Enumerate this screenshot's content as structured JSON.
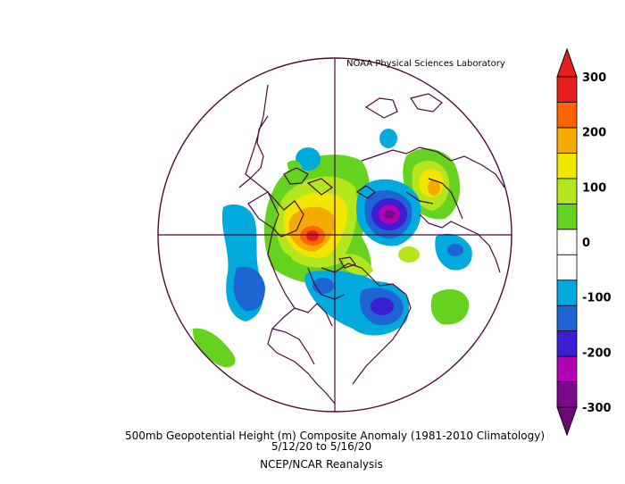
{
  "credit": "NOAA Physical Sciences Laboratory",
  "caption": {
    "line1": "500mb Geopotential Height (m) Composite Anomaly (1981-2010 Climatology)",
    "line2": "5/12/20  to 5/16/20",
    "line3": "NCEP/NCAR Reanalysis"
  },
  "colorbar": {
    "labels": [
      "300",
      "200",
      "100",
      "0",
      "-100",
      "-200",
      "-300"
    ],
    "colors": [
      "#7a0a8c",
      "#b400b4",
      "#3c1ed2",
      "#1e64d2",
      "#00aadc",
      "#ffffff",
      "#ffffff",
      "#64d21e",
      "#b4e61e",
      "#f0e600",
      "#f5aa00",
      "#ff6400",
      "#e61e1e"
    ],
    "top_arrow_color": "#e61e1e",
    "bottom_arrow_color": "#6e0a78"
  },
  "map": {
    "projection": "polar-stereographic (north pole)",
    "boundary_color": "#4a0a3a"
  }
}
